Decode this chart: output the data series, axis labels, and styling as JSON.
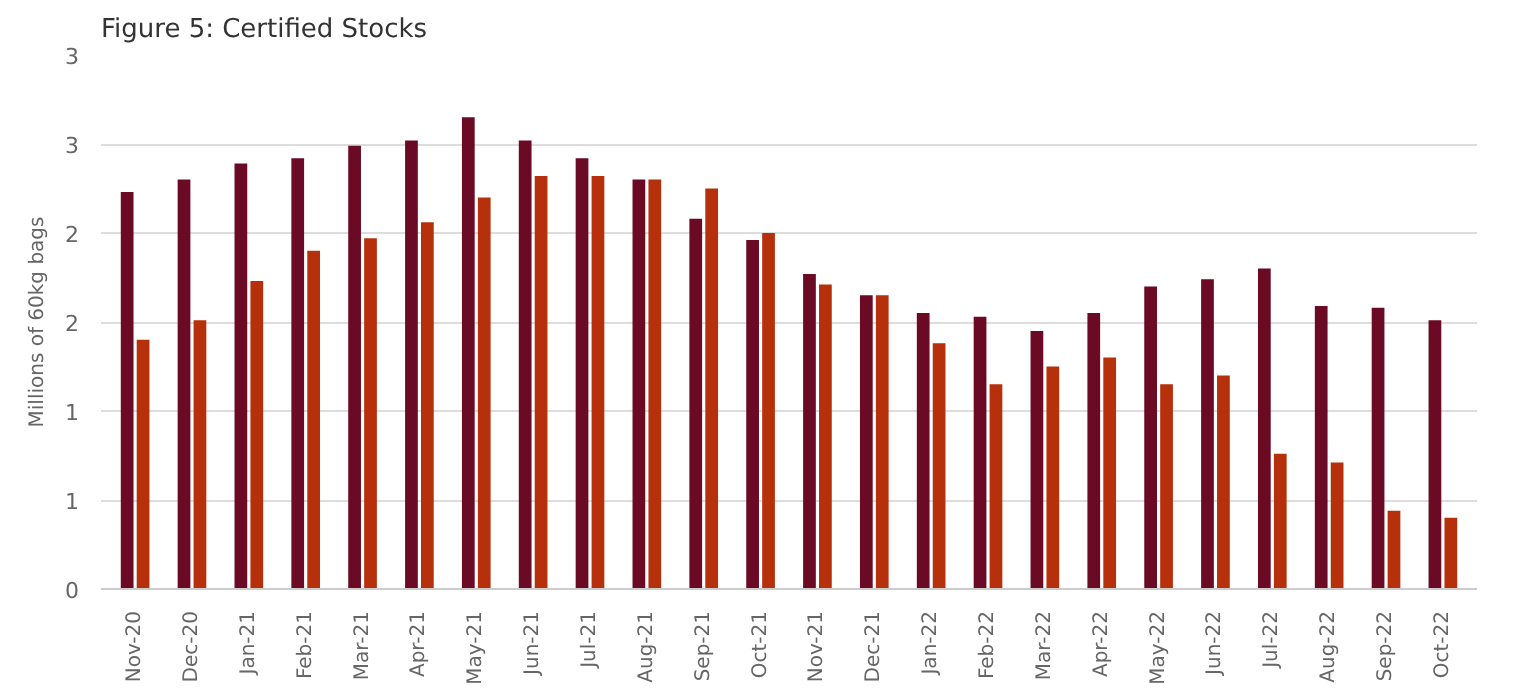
{
  "chart_data": {
    "type": "bar",
    "title": "Figure 5: Certified Stocks",
    "ylabel": "Millions of 60kg bags",
    "categories": [
      "Nov-20",
      "Dec-20",
      "Jan-21",
      "Feb-21",
      "Mar-21",
      "Apr-21",
      "May-21",
      "Jun-21",
      "Jul-21",
      "Aug-21",
      "Sep-21",
      "Oct-21",
      "Nov-21",
      "Dec-21",
      "Jan-22",
      "Feb-22",
      "Mar-22",
      "Apr-22",
      "May-22",
      "Jun-22",
      "Jul-22",
      "Aug-22",
      "Sep-22",
      "Oct-22"
    ],
    "series": [
      {
        "color": "#6b0a24",
        "values": [
          2.23,
          2.3,
          2.39,
          2.42,
          2.49,
          2.52,
          2.65,
          2.52,
          2.42,
          2.3,
          2.08,
          1.96,
          1.77,
          1.65,
          1.55,
          1.53,
          1.45,
          1.55,
          1.7,
          1.74,
          1.8,
          1.59,
          1.58,
          1.51
        ]
      },
      {
        "color": "#b5300b",
        "values": [
          1.4,
          1.51,
          1.73,
          1.9,
          1.97,
          2.06,
          2.2,
          2.32,
          2.32,
          2.3,
          2.25,
          2.0,
          1.71,
          1.65,
          1.38,
          1.15,
          1.25,
          1.3,
          1.15,
          1.2,
          0.76,
          0.71,
          0.44,
          0.4
        ]
      }
    ],
    "ylim": [
      0,
      3
    ],
    "yticks": [
      0,
      {
        "value": 0.5,
        "label": "1"
      },
      1,
      {
        "value": 1.5,
        "label": "2"
      },
      2,
      {
        "value": 2.5,
        "label": "3"
      },
      3
    ],
    "grid": "y"
  }
}
